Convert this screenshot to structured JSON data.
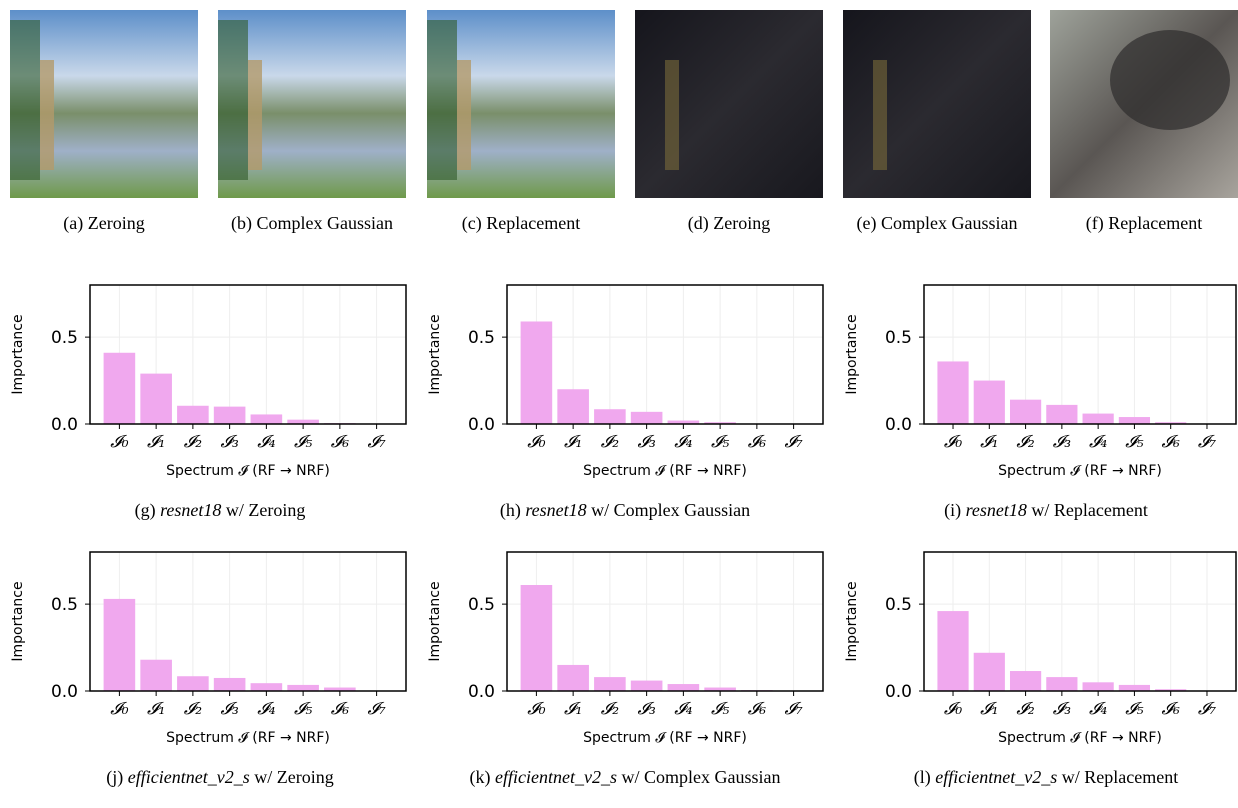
{
  "images": [
    {
      "label": "(a)",
      "caption": "Zeroing"
    },
    {
      "label": "(b)",
      "caption": "Complex Gaussian"
    },
    {
      "label": "(c)",
      "caption": "Replacement"
    },
    {
      "label": "(d)",
      "caption": "Zeroing"
    },
    {
      "label": "(e)",
      "caption": "Complex Gaussian"
    },
    {
      "label": "(f)",
      "caption": "Replacement"
    }
  ],
  "chart_data": [
    {
      "type": "bar",
      "caption_label": "(g)",
      "caption_model": "resnet18",
      "caption_method": "w/ Zeroing",
      "ylabel": "Importance",
      "xlabel": "Spectrum 𝓘 (RF → NRF)",
      "categories": [
        "𝓘₀",
        "𝓘₁",
        "𝓘₂",
        "𝓘₃",
        "𝓘₄",
        "𝓘₅",
        "𝓘₆",
        "𝓘₇"
      ],
      "values": [
        0.41,
        0.29,
        0.105,
        0.1,
        0.055,
        0.025,
        0.005,
        0.0
      ],
      "color": "#f0a8ee",
      "ylim": [
        0,
        0.8
      ],
      "yticks": [
        {
          "value": 0,
          "label": "0.0"
        },
        0.5
      ],
      "grid": true
    },
    {
      "type": "bar",
      "caption_label": "(h)",
      "caption_model": "resnet18",
      "caption_method": "w/ Complex Gaussian",
      "ylabel": "Importance",
      "xlabel": "Spectrum 𝓘 (RF → NRF)",
      "categories": [
        "𝓘₀",
        "𝓘₁",
        "𝓘₂",
        "𝓘₃",
        "𝓘₄",
        "𝓘₅",
        "𝓘₆",
        "𝓘₇"
      ],
      "values": [
        0.59,
        0.2,
        0.085,
        0.07,
        0.02,
        0.01,
        0.0,
        0.0
      ],
      "color": "#f0a8ee",
      "ylim": [
        0,
        0.8
      ],
      "yticks": [
        {
          "value": 0,
          "label": "0.0"
        },
        0.5
      ],
      "grid": true
    },
    {
      "type": "bar",
      "caption_label": "(i)",
      "caption_model": "resnet18",
      "caption_method": "w/ Replacement",
      "ylabel": "Importance",
      "xlabel": "Spectrum 𝓘 (RF → NRF)",
      "categories": [
        "𝓘₀",
        "𝓘₁",
        "𝓘₂",
        "𝓘₃",
        "𝓘₄",
        "𝓘₅",
        "𝓘₆",
        "𝓘₇"
      ],
      "values": [
        0.36,
        0.25,
        0.14,
        0.11,
        0.06,
        0.04,
        0.01,
        0.0
      ],
      "color": "#f0a8ee",
      "ylim": [
        0,
        0.8
      ],
      "yticks": [
        {
          "value": 0,
          "label": "0.0"
        },
        0.5
      ],
      "grid": true
    },
    {
      "type": "bar",
      "caption_label": "(j)",
      "caption_model": "efficientnet_v2_s",
      "caption_method": "w/ Zeroing",
      "ylabel": "Importance",
      "xlabel": "Spectrum 𝓘 (RF → NRF)",
      "categories": [
        "𝓘₀",
        "𝓘₁",
        "𝓘₂",
        "𝓘₃",
        "𝓘₄",
        "𝓘₅",
        "𝓘₆",
        "𝓘₇"
      ],
      "values": [
        0.53,
        0.18,
        0.085,
        0.075,
        0.045,
        0.035,
        0.02,
        0.0
      ],
      "color": "#f0a8ee",
      "ylim": [
        0,
        0.8
      ],
      "yticks": [
        {
          "value": 0,
          "label": "0.0"
        },
        0.5
      ],
      "grid": true
    },
    {
      "type": "bar",
      "caption_label": "(k)",
      "caption_model": "efficientnet_v2_s",
      "caption_method": "w/ Complex Gaussian",
      "ylabel": "Importance",
      "xlabel": "Spectrum 𝓘 (RF → NRF)",
      "categories": [
        "𝓘₀",
        "𝓘₁",
        "𝓘₂",
        "𝓘₃",
        "𝓘₄",
        "𝓘₅",
        "𝓘₆",
        "𝓘₇"
      ],
      "values": [
        0.61,
        0.15,
        0.08,
        0.06,
        0.04,
        0.02,
        0.005,
        0.0
      ],
      "color": "#f0a8ee",
      "ylim": [
        0,
        0.8
      ],
      "yticks": [
        {
          "value": 0,
          "label": "0.0"
        },
        0.5
      ],
      "grid": true
    },
    {
      "type": "bar",
      "caption_label": "(l)",
      "caption_model": "efficientnet_v2_s",
      "caption_method": "w/ Replacement",
      "ylabel": "Importance",
      "xlabel": "Spectrum 𝓘 (RF → NRF)",
      "categories": [
        "𝓘₀",
        "𝓘₁",
        "𝓘₂",
        "𝓘₃",
        "𝓘₄",
        "𝓘₅",
        "𝓘₆",
        "𝓘₇"
      ],
      "values": [
        0.46,
        0.22,
        0.115,
        0.08,
        0.05,
        0.035,
        0.01,
        0.0
      ],
      "color": "#f0a8ee",
      "ylim": [
        0,
        0.8
      ],
      "yticks": [
        {
          "value": 0,
          "label": "0.0"
        },
        0.5
      ],
      "grid": true
    }
  ]
}
